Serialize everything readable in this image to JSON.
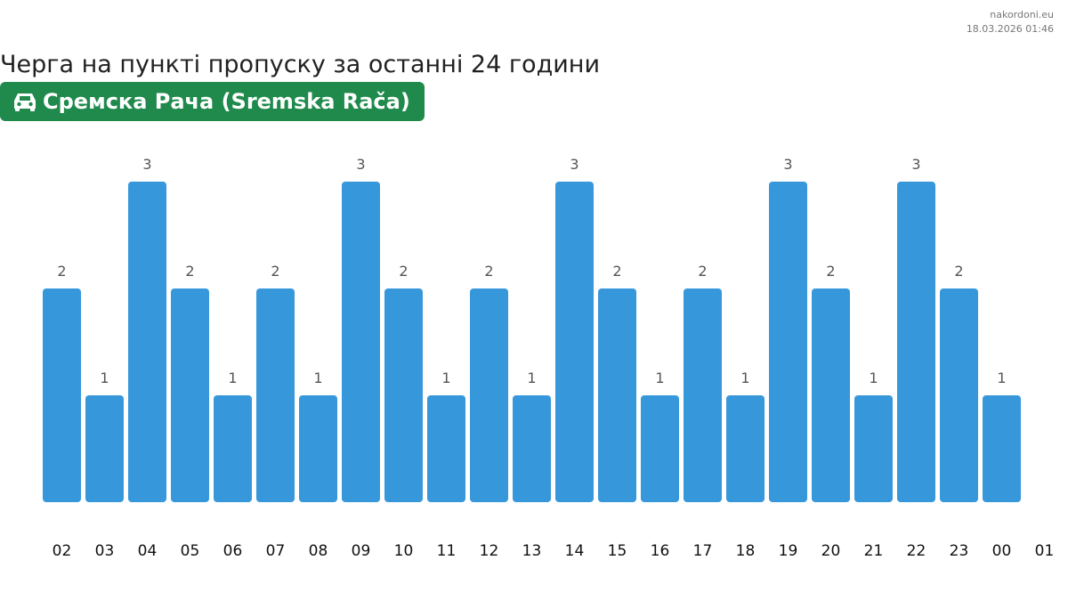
{
  "site": "nakordoni.eu",
  "timestamp": "18.03.2026 01:46",
  "title": "Черга на пункті пропуску за останні 24 години",
  "checkpoint": {
    "name": "Сремска Рача (Sremska Rača)",
    "icon": "car-icon",
    "color": "#1f8a4c"
  },
  "chart_data": {
    "type": "bar",
    "categories": [
      "02",
      "03",
      "04",
      "05",
      "06",
      "07",
      "08",
      "09",
      "10",
      "11",
      "12",
      "13",
      "14",
      "15",
      "16",
      "17",
      "18",
      "19",
      "20",
      "21",
      "22",
      "23",
      "00"
    ],
    "extra_tick": "01",
    "values": [
      2,
      1,
      3,
      2,
      1,
      2,
      1,
      3,
      2,
      1,
      2,
      1,
      3,
      2,
      1,
      2,
      1,
      3,
      2,
      1,
      3,
      2,
      1
    ],
    "ylim": [
      0,
      3
    ],
    "bar_color": "#3698db",
    "grid": false,
    "legend": "none"
  }
}
